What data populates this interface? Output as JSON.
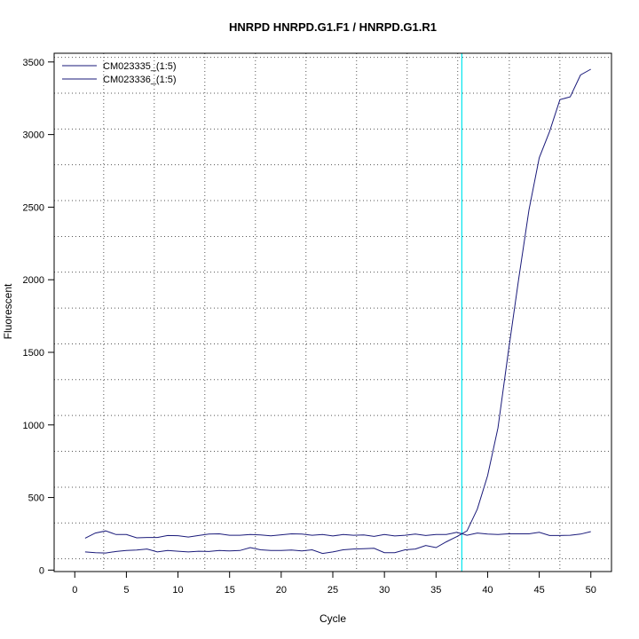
{
  "chart_data": {
    "type": "line",
    "title": "HNRPD  HNRPD.G1.F1 / HNRPD.G1.R1",
    "xlabel": "Cycle",
    "ylabel": "Fluorescent",
    "xlim": [
      -2,
      52
    ],
    "ylim": [
      -10,
      3560
    ],
    "x_ticks": [
      0,
      5,
      10,
      15,
      20,
      25,
      30,
      35,
      40,
      45,
      50
    ],
    "y_ticks": [
      0,
      500,
      1000,
      1500,
      2000,
      2500,
      3000,
      3500
    ],
    "grid": true,
    "grid_x": [
      2.8,
      7.7,
      12.6,
      17.5,
      22.4,
      27.3,
      32.2,
      37.1,
      42.1,
      47
    ],
    "grid_y": [
      78,
      325,
      571,
      818,
      1065,
      1312,
      1558,
      1805,
      2052,
      2298,
      2545,
      2792,
      3038,
      3285,
      3532
    ],
    "legend_position": "top-left",
    "threshold_x": 37.5,
    "threshold_color": "#00e5ee",
    "line_color": "#1a1a7a",
    "x": [
      1,
      2,
      3,
      4,
      5,
      6,
      7,
      8,
      9,
      10,
      11,
      12,
      13,
      14,
      15,
      16,
      17,
      18,
      19,
      20,
      21,
      22,
      23,
      24,
      25,
      26,
      27,
      28,
      29,
      30,
      31,
      32,
      33,
      34,
      35,
      36,
      37,
      38,
      39,
      40,
      41,
      42,
      43,
      44,
      45,
      46,
      47,
      48,
      49,
      50
    ],
    "series": [
      {
        "name": "CM023335_(1:5)",
        "values": [
          125,
          120,
          118,
          128,
          135,
          138,
          145,
          125,
          135,
          130,
          125,
          130,
          128,
          135,
          132,
          135,
          155,
          140,
          135,
          135,
          138,
          132,
          140,
          115,
          125,
          140,
          145,
          148,
          150,
          120,
          120,
          140,
          145,
          170,
          155,
          195,
          230,
          270,
          420,
          650,
          980,
          1500,
          2000,
          2480,
          2840,
          3020,
          3240,
          3260,
          3410,
          3450
        ]
      },
      {
        "name": "CM023336_(1:5)",
        "values": [
          220,
          255,
          270,
          245,
          245,
          222,
          225,
          225,
          238,
          237,
          228,
          238,
          248,
          250,
          240,
          240,
          245,
          242,
          236,
          243,
          250,
          248,
          240,
          245,
          235,
          245,
          240,
          242,
          232,
          245,
          235,
          240,
          248,
          238,
          245,
          245,
          260,
          240,
          255,
          248,
          245,
          250,
          250,
          250,
          260,
          238,
          238,
          240,
          248,
          265
        ]
      }
    ]
  }
}
